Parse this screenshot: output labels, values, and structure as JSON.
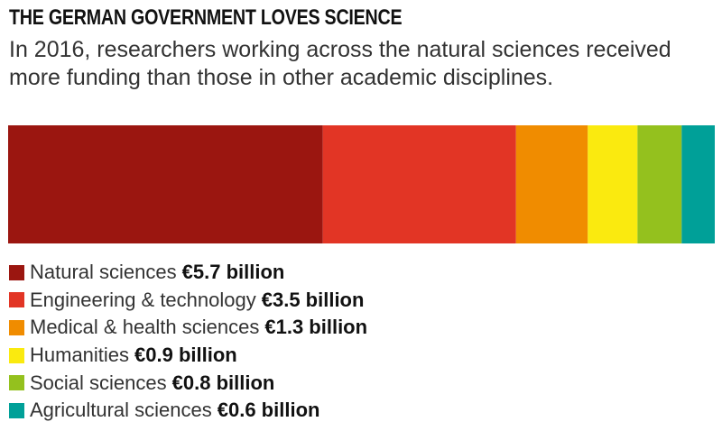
{
  "header": {
    "title": "THE GERMAN GOVERNMENT LOVES SCIENCE",
    "subtitle": "In 2016, researchers working across the natural sciences received more funding than those in other academic disciplines."
  },
  "chart_data": {
    "type": "bar",
    "orientation": "horizontal-stacked",
    "title": "THE GERMAN GOVERNMENT LOVES SCIENCE",
    "categories": [
      "Natural sciences",
      "Engineering & technology",
      "Medical & health sciences",
      "Humanities",
      "Social sciences",
      "Agricultural sciences"
    ],
    "values": [
      5.7,
      3.5,
      1.3,
      0.9,
      0.8,
      0.6
    ],
    "value_labels": [
      "€5.7 billion",
      "€3.5 billion",
      "€1.3 billion",
      "€0.9 billion",
      "€0.8 billion",
      "€0.6 billion"
    ],
    "colors": [
      "#9b1610",
      "#e23525",
      "#f08c00",
      "#faea0f",
      "#94c11e",
      "#00a098"
    ],
    "legend_position": "bottom",
    "grid": false
  }
}
